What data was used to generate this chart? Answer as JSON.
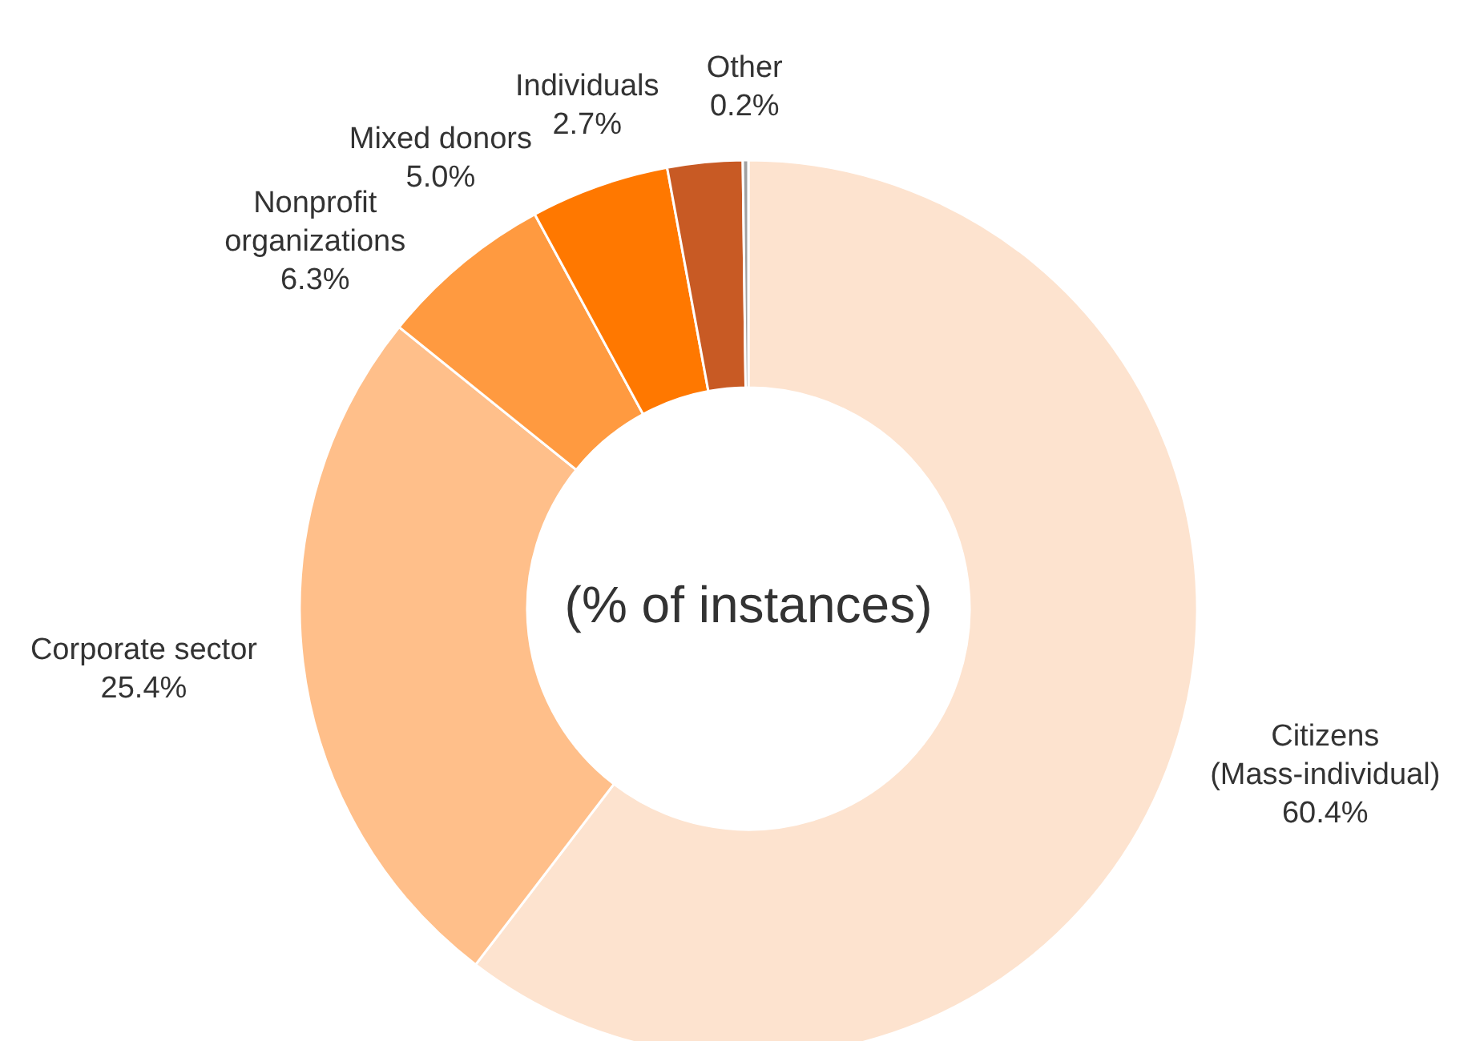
{
  "chart_data": {
    "type": "donut",
    "categories": [
      "Citizens (Mass-individual)",
      "Corporate sector",
      "Nonprofit organizations",
      "Mixed donors",
      "Individuals",
      "Other"
    ],
    "values": [
      60.4,
      25.4,
      6.3,
      5.0,
      2.7,
      0.2
    ],
    "colors": [
      "#fde3cf",
      "#ffbf8a",
      "#ff9a40",
      "#ff7800",
      "#c85a24",
      "#a0a0a0"
    ],
    "value_labels": [
      "60.4%",
      "25.4%",
      "6.3%",
      "5.0%",
      "2.7%",
      "0.2%"
    ],
    "annotations": [
      "(% of instances)"
    ]
  }
}
